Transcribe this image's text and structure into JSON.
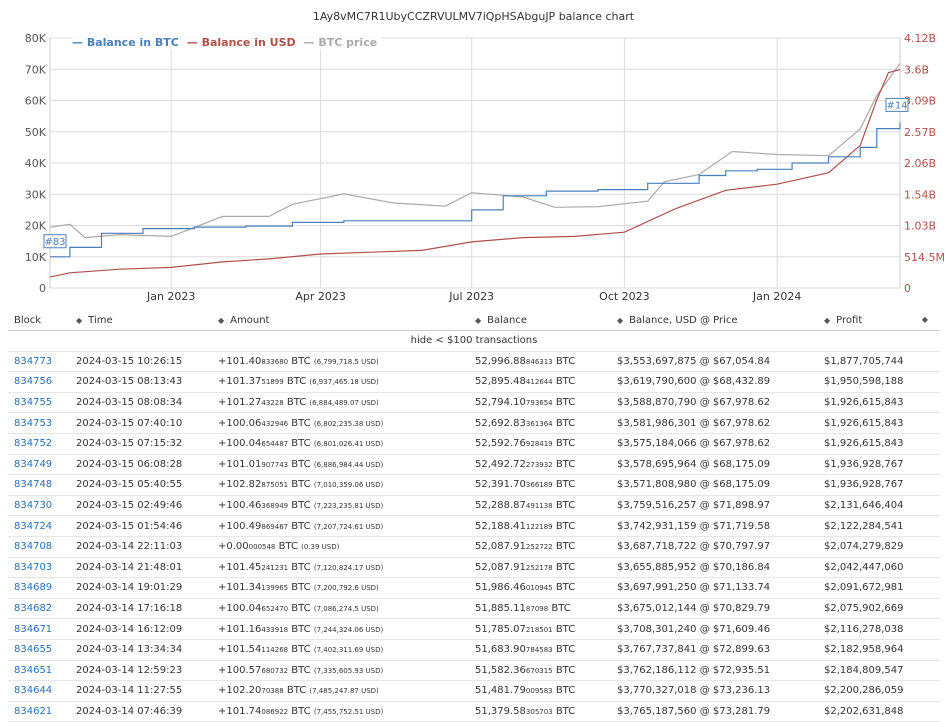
{
  "chart_data": {
    "type": "line",
    "title": "1Ay8vMC7R1UbyCCZRVULMV7iQpHSAbguJP balance chart",
    "x_range": [
      "2022-10-20",
      "2024-03-15"
    ],
    "x_ticks": [
      "Jan 2023",
      "Apr 2023",
      "Jul 2023",
      "Oct 2023",
      "Jan 2024"
    ],
    "y_left_ticks": [
      "0",
      "10K",
      "20K",
      "30K",
      "40K",
      "50K",
      "60K",
      "70K",
      "80K"
    ],
    "y_left_range": [
      0,
      80000
    ],
    "y_right_ticks": [
      "0",
      "514.5M",
      "1.03B",
      "1.54B",
      "2.06B",
      "2.57B",
      "3.09B",
      "3.6B",
      "4.12B"
    ],
    "y_right_range": [
      0,
      4120000000
    ],
    "grid": true,
    "legend_placement": "top-left",
    "annotations": [
      "#83",
      "#14"
    ],
    "series": [
      {
        "name": "Balance in BTC",
        "color": "#4a7ebb",
        "axis": "left",
        "x": [
          "2022-10-20",
          "2022-11-01",
          "2022-11-20",
          "2022-12-15",
          "2023-01-15",
          "2023-02-15",
          "2023-03-15",
          "2023-04-15",
          "2023-05-15",
          "2023-06-15",
          "2023-07-01",
          "2023-07-20",
          "2023-08-15",
          "2023-09-15",
          "2023-10-15",
          "2023-11-15",
          "2023-12-01",
          "2023-12-20",
          "2024-01-10",
          "2024-02-01",
          "2024-02-20",
          "2024-03-01",
          "2024-03-15"
        ],
        "y": [
          10000,
          13000,
          17500,
          19000,
          19500,
          19800,
          21000,
          21500,
          21500,
          21500,
          25000,
          29500,
          31000,
          31500,
          33500,
          36000,
          37500,
          38000,
          40000,
          42000,
          45000,
          51000,
          53000
        ]
      },
      {
        "name": "Balance in USD",
        "color": "#b0504a",
        "axis": "right",
        "x": [
          "2022-10-20",
          "2022-11-01",
          "2022-12-01",
          "2023-01-01",
          "2023-02-01",
          "2023-03-01",
          "2023-04-01",
          "2023-05-01",
          "2023-06-01",
          "2023-07-01",
          "2023-08-01",
          "2023-09-01",
          "2023-10-01",
          "2023-11-01",
          "2023-12-01",
          "2024-01-01",
          "2024-02-01",
          "2024-02-20",
          "2024-03-01",
          "2024-03-08",
          "2024-03-15"
        ],
        "y": [
          180000000,
          250000000,
          310000000,
          340000000,
          430000000,
          480000000,
          560000000,
          590000000,
          620000000,
          760000000,
          830000000,
          850000000,
          920000000,
          1310000000,
          1610000000,
          1710000000,
          1900000000,
          2350000000,
          3100000000,
          3550000000,
          3600000000
        ]
      },
      {
        "name": "BTC price",
        "color": "#aaaaaa",
        "axis": "right",
        "x": [
          "2022-10-20",
          "2022-11-01",
          "2022-11-10",
          "2022-12-01",
          "2023-01-01",
          "2023-02-01",
          "2023-03-01",
          "2023-03-15",
          "2023-04-15",
          "2023-05-15",
          "2023-06-15",
          "2023-07-01",
          "2023-08-01",
          "2023-08-20",
          "2023-09-15",
          "2023-10-15",
          "2023-10-25",
          "2023-11-15",
          "2023-12-05",
          "2024-01-01",
          "2024-02-01",
          "2024-02-20",
          "2024-03-01",
          "2024-03-15"
        ],
        "y": [
          1000000000,
          1050000000,
          830000000,
          880000000,
          850000000,
          1180000000,
          1180000000,
          1380000000,
          1550000000,
          1400000000,
          1350000000,
          1570000000,
          1500000000,
          1330000000,
          1340000000,
          1430000000,
          1750000000,
          1870000000,
          2250000000,
          2200000000,
          2180000000,
          2620000000,
          3170000000,
          3700000000
        ]
      }
    ]
  },
  "table": {
    "headers": [
      "Block",
      "Time",
      "Amount",
      "Balance",
      "Balance, USD @ Price",
      "Profit"
    ],
    "hide_link": "hide < $100 transactions",
    "rows": [
      {
        "block": "834773",
        "time": "2024-03-15 10:26:15",
        "amt_main": "+101.40",
        "amt_small": "833680",
        "amt_unit": " BTC ",
        "amt_usd": "(6,799,718.5 USD)",
        "bal_main": "52,996.88",
        "bal_small": "846313",
        "bal_unit": " BTC",
        "usd_price": "$3,553,697,875 @ $67,054.84",
        "profit": "$1,877,705,744"
      },
      {
        "block": "834756",
        "time": "2024-03-15 08:13:43",
        "amt_main": "+101.37",
        "amt_small": "51899",
        "amt_unit": " BTC ",
        "amt_usd": "(6,937,465.18 USD)",
        "bal_main": "52,895.48",
        "bal_small": "412644",
        "bal_unit": " BTC",
        "usd_price": "$3,619,790,600 @ $68,432.89",
        "profit": "$1,950,598,188"
      },
      {
        "block": "834755",
        "time": "2024-03-15 08:08:34",
        "amt_main": "+101.27",
        "amt_small": "43228",
        "amt_unit": " BTC ",
        "amt_usd": "(6,884,489.07 USD)",
        "bal_main": "52,794.10",
        "bal_small": "793654",
        "bal_unit": " BTC",
        "usd_price": "$3,588,870,790 @ $67,978.62",
        "profit": "$1,926,615,843"
      },
      {
        "block": "834753",
        "time": "2024-03-15 07:40:10",
        "amt_main": "+100.06",
        "amt_small": "432946",
        "amt_unit": " BTC ",
        "amt_usd": "(6,802,235.38 USD)",
        "bal_main": "52,692.83",
        "bal_small": "361364",
        "bal_unit": " BTC",
        "usd_price": "$3,581,986,301 @ $67,978.62",
        "profit": "$1,926,615,843"
      },
      {
        "block": "834752",
        "time": "2024-03-15 07:15:32",
        "amt_main": "+100.04",
        "amt_small": "654487",
        "amt_unit": " BTC ",
        "amt_usd": "(6,801,026.41 USD)",
        "bal_main": "52,592.76",
        "bal_small": "928419",
        "bal_unit": " BTC",
        "usd_price": "$3,575,184,066 @ $67,978.62",
        "profit": "$1,926,615,843"
      },
      {
        "block": "834749",
        "time": "2024-03-15 06:08:28",
        "amt_main": "+101.01",
        "amt_small": "907743",
        "amt_unit": " BTC ",
        "amt_usd": "(6,886,984.44 USD)",
        "bal_main": "52,492.72",
        "bal_small": "273932",
        "bal_unit": " BTC",
        "usd_price": "$3,578,695,964 @ $68,175.09",
        "profit": "$1,936,928,767"
      },
      {
        "block": "834748",
        "time": "2024-03-15 05:40:55",
        "amt_main": "+102.82",
        "amt_small": "875051",
        "amt_unit": " BTC ",
        "amt_usd": "(7,010,359.06 USD)",
        "bal_main": "52,391.70",
        "bal_small": "366189",
        "bal_unit": " BTC",
        "usd_price": "$3,571,808,980 @ $68,175.09",
        "profit": "$1,936,928,767"
      },
      {
        "block": "834730",
        "time": "2024-03-15 02:49:46",
        "amt_main": "+100.46",
        "amt_small": "368949",
        "amt_unit": " BTC ",
        "amt_usd": "(7,223,235.81 USD)",
        "bal_main": "52,288.87",
        "bal_small": "491138",
        "bal_unit": " BTC",
        "usd_price": "$3,759,516,257 @ $71,898.97",
        "profit": "$2,131,646,404"
      },
      {
        "block": "834724",
        "time": "2024-03-15 01:54:46",
        "amt_main": "+100.49",
        "amt_small": "869467",
        "amt_unit": " BTC ",
        "amt_usd": "(7,207,724.61 USD)",
        "bal_main": "52,188.41",
        "bal_small": "122189",
        "bal_unit": " BTC",
        "usd_price": "$3,742,931,159 @ $71,719.58",
        "profit": "$2,122,284,541"
      },
      {
        "block": "834708",
        "time": "2024-03-14 22:11:03",
        "amt_main": "+0.00",
        "amt_small": "000548",
        "amt_unit": " BTC ",
        "amt_usd": "(0.39 USD)",
        "bal_main": "52,087.91",
        "bal_small": "252722",
        "bal_unit": " BTC",
        "usd_price": "$3,687,718,722 @ $70,797.97",
        "profit": "$2,074,279,829"
      },
      {
        "block": "834703",
        "time": "2024-03-14 21:48:01",
        "amt_main": "+101.45",
        "amt_small": "241231",
        "amt_unit": " BTC ",
        "amt_usd": "(7,120,824.17 USD)",
        "bal_main": "52,087.91",
        "bal_small": "252178",
        "bal_unit": " BTC",
        "usd_price": "$3,655,885,952 @ $70,186.84",
        "profit": "$2,042,447,060"
      },
      {
        "block": "834689",
        "time": "2024-03-14 19:01:29",
        "amt_main": "+101.34",
        "amt_small": "139965",
        "amt_unit": " BTC ",
        "amt_usd": "(7,200,792.6 USD)",
        "bal_main": "51,986.46",
        "bal_small": "010945",
        "bal_unit": " BTC",
        "usd_price": "$3,697,991,250 @ $71,133.74",
        "profit": "$2,091,672,981"
      },
      {
        "block": "834682",
        "time": "2024-03-14 17:16:18",
        "amt_main": "+100.04",
        "amt_small": "652470",
        "amt_unit": " BTC ",
        "amt_usd": "(7,086,274.5 USD)",
        "bal_main": "51,885.11",
        "bal_small": "87098",
        "bal_unit": " BTC",
        "usd_price": "$3,675,012,144 @ $70,829.79",
        "profit": "$2,075,902,669"
      },
      {
        "block": "834671",
        "time": "2024-03-14 16:12:09",
        "amt_main": "+101.16",
        "amt_small": "433918",
        "amt_unit": " BTC ",
        "amt_usd": "(7,244,324.06 USD)",
        "bal_main": "51,785.07",
        "bal_small": "218501",
        "bal_unit": " BTC",
        "usd_price": "$3,708,301,240 @ $71,609.46",
        "profit": "$2,116,278,038"
      },
      {
        "block": "834655",
        "time": "2024-03-14 13:34:34",
        "amt_main": "+101.54",
        "amt_small": "114268",
        "amt_unit": " BTC ",
        "amt_usd": "(7,402,311.69 USD)",
        "bal_main": "51,683.90",
        "bal_small": "784583",
        "bal_unit": " BTC",
        "usd_price": "$3,767,737,841 @ $72,899.63",
        "profit": "$2,182,958,964"
      },
      {
        "block": "834651",
        "time": "2024-03-14 12:59:23",
        "amt_main": "+100.57",
        "amt_small": "680732",
        "amt_unit": " BTC ",
        "amt_usd": "(7,335,605.93 USD)",
        "bal_main": "51,582.36",
        "bal_small": "670315",
        "bal_unit": " BTC",
        "usd_price": "$3,762,186,112 @ $72,935.51",
        "profit": "$2,184,809,547"
      },
      {
        "block": "834644",
        "time": "2024-03-14 11:27:55",
        "amt_main": "+102.20",
        "amt_small": "70388",
        "amt_unit": " BTC ",
        "amt_usd": "(7,485,247.87 USD)",
        "bal_main": "51,481.79",
        "bal_small": "009583",
        "bal_unit": " BTC",
        "usd_price": "$3,770,327,018 @ $73,236.13",
        "profit": "$2,200,286,059"
      },
      {
        "block": "834621",
        "time": "2024-03-14 07:46:39",
        "amt_main": "+101.74",
        "amt_small": "086922",
        "amt_unit": " BTC ",
        "amt_usd": "(7,455,752.51 USD)",
        "bal_main": "51,379.58",
        "bal_small": "305703",
        "bal_unit": " BTC",
        "usd_price": "$3,765,187,560 @ $73,281.79",
        "profit": "$2,202,631,848"
      }
    ]
  }
}
